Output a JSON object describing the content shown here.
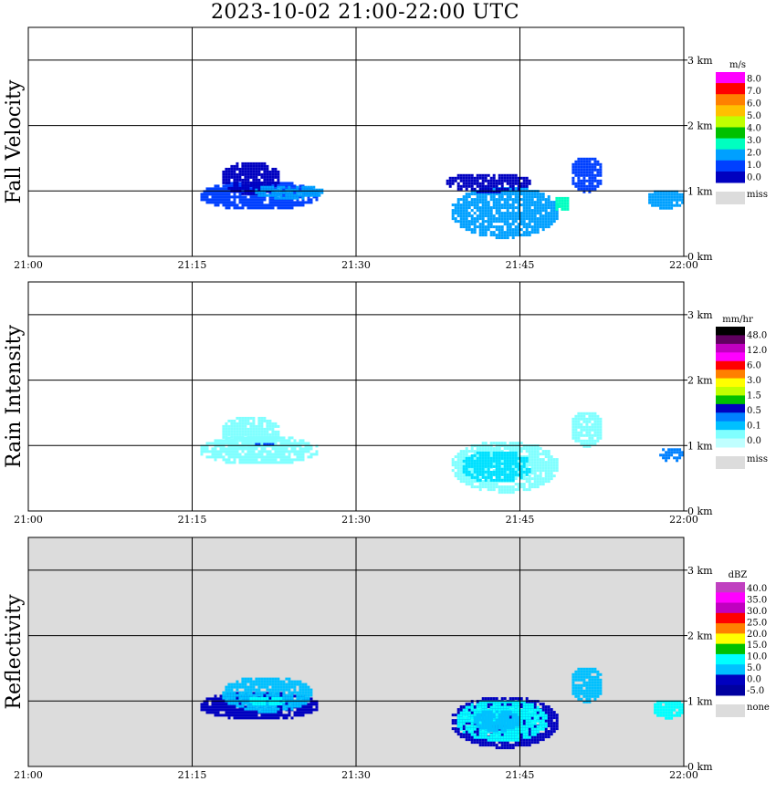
{
  "title": "2023-10-02   21:00-22:00 UTC",
  "x_ticks": [
    "21:00",
    "21:15",
    "21:30",
    "21:45",
    "22:00"
  ],
  "y_ticks": [
    "0 km",
    "1 km",
    "2 km",
    "3 km"
  ],
  "colors": {
    "miss": "#dcdcdc",
    "grid": "#000000"
  },
  "panels": [
    {
      "id": "fall-velocity",
      "ylabel": "Fall Velocity",
      "background": "#ffffff",
      "colorbar": {
        "unit": "m/s",
        "labels": [
          "8.0",
          "7.0",
          "6.0",
          "5.0",
          "4.0",
          "3.0",
          "2.0",
          "1.0",
          "0.0"
        ],
        "colors": [
          "#ff00ff",
          "#ff0000",
          "#ff8000",
          "#ffc000",
          "#c0ff00",
          "#00c000",
          "#00ffc0",
          "#00a0ff",
          "#0040ff",
          "#0000c0"
        ],
        "missing_label": "miss"
      },
      "blobs": [
        {
          "t": [
            15.5,
            26.5
          ],
          "h": [
            0.72,
            1.18
          ],
          "c": "#0040ff"
        },
        {
          "t": [
            17.5,
            23.0
          ],
          "h": [
            0.95,
            1.48
          ],
          "c": "#0000c0"
        },
        {
          "t": [
            20.5,
            27.0
          ],
          "h": [
            0.9,
            1.12
          ],
          "c": "#00a0ff"
        },
        {
          "t": [
            38.5,
            48.5
          ],
          "h": [
            0.3,
            1.1
          ],
          "c": "#00a0ff"
        },
        {
          "t": [
            38.0,
            46.0
          ],
          "h": [
            1.0,
            1.3
          ],
          "c": "#0000c0"
        },
        {
          "t": [
            49.5,
            52.5
          ],
          "h": [
            1.0,
            1.55
          ],
          "c": "#0040ff"
        },
        {
          "t": [
            56.5,
            60.0
          ],
          "h": [
            0.75,
            1.05
          ],
          "c": "#00a0ff"
        },
        {
          "t": [
            48.0,
            49.5
          ],
          "h": [
            0.7,
            0.95
          ],
          "c": "#00ffc0"
        }
      ]
    },
    {
      "id": "rain-intensity",
      "ylabel": "Rain Intensity",
      "background": "#ffffff",
      "colorbar": {
        "unit": "mm/hr",
        "labels": [
          "48.0",
          "12.0",
          "6.0",
          "3.0",
          "1.5",
          "0.5",
          "0.1",
          "0.0"
        ],
        "colors": [
          "#000000",
          "#600060",
          "#c000c0",
          "#ff00ff",
          "#ff0000",
          "#ff8000",
          "#ffff00",
          "#c0ff00",
          "#00c000",
          "#0000c0",
          "#0080ff",
          "#00c0ff",
          "#80ffff",
          "#c0ffff"
        ],
        "missing_label": "miss"
      },
      "blobs": [
        {
          "t": [
            15.5,
            26.5
          ],
          "h": [
            0.72,
            1.18
          ],
          "c": "#80ffff"
        },
        {
          "t": [
            17.5,
            23.0
          ],
          "h": [
            0.95,
            1.48
          ],
          "c": "#80ffff"
        },
        {
          "t": [
            20.5,
            22.5
          ],
          "h": [
            1.0,
            1.08
          ],
          "c": "#0040ff"
        },
        {
          "t": [
            38.5,
            48.5
          ],
          "h": [
            0.3,
            1.1
          ],
          "c": "#80ffff"
        },
        {
          "t": [
            39.5,
            46.0
          ],
          "h": [
            0.45,
            0.95
          ],
          "c": "#00e0ff"
        },
        {
          "t": [
            49.5,
            52.5
          ],
          "h": [
            1.0,
            1.55
          ],
          "c": "#80ffff"
        },
        {
          "t": [
            57.5,
            60.0
          ],
          "h": [
            0.78,
            1.0
          ],
          "c": "#0080ff"
        }
      ]
    },
    {
      "id": "reflectivity",
      "ylabel": "Reflectivity",
      "background": "#dcdcdc",
      "colorbar": {
        "unit": "dBZ",
        "labels": [
          "40.0",
          "35.0",
          "30.0",
          "25.0",
          "20.0",
          "15.0",
          "10.0",
          "5.0",
          "0.0",
          "-5.0"
        ],
        "colors": [
          "#c040c0",
          "#ff00ff",
          "#c000c0",
          "#ff0000",
          "#ff8000",
          "#ffff00",
          "#00c000",
          "#00ffff",
          "#00c0ff",
          "#0000c0",
          "#0000a0"
        ],
        "missing_label": "none"
      },
      "blobs": [
        {
          "t": [
            15.5,
            26.5
          ],
          "h": [
            0.72,
            1.18
          ],
          "c": "#0000c0"
        },
        {
          "t": [
            17.5,
            26.0
          ],
          "h": [
            0.85,
            1.4
          ],
          "c": "#00c0ff"
        },
        {
          "t": [
            20.0,
            23.5
          ],
          "h": [
            0.95,
            1.1
          ],
          "c": "#00ffff"
        },
        {
          "t": [
            38.5,
            48.5
          ],
          "h": [
            0.3,
            1.1
          ],
          "c": "#0000c0"
        },
        {
          "t": [
            39.0,
            47.5
          ],
          "h": [
            0.4,
            1.05
          ],
          "c": "#00ffff"
        },
        {
          "t": [
            40.5,
            45.0
          ],
          "h": [
            0.55,
            0.9
          ],
          "c": "#00c0ff"
        },
        {
          "t": [
            49.5,
            52.5
          ],
          "h": [
            1.0,
            1.55
          ],
          "c": "#00c0ff"
        },
        {
          "t": [
            57.0,
            60.0
          ],
          "h": [
            0.75,
            1.05
          ],
          "c": "#00ffff"
        }
      ]
    }
  ],
  "chart_data": {
    "type": "heatmap",
    "title": "2023-10-02   21:00-22:00 UTC",
    "x_range": [
      "21:00",
      "22:00"
    ],
    "x_tick_labels": [
      "21:00",
      "21:15",
      "21:30",
      "21:45",
      "22:00"
    ],
    "y_range_km": [
      0,
      3.5
    ],
    "y_tick_labels": [
      "0 km",
      "1 km",
      "2 km",
      "3 km"
    ],
    "grid": true,
    "series": [
      {
        "name": "Fall Velocity",
        "unit": "m/s",
        "scale": [
          "8.0",
          "7.0",
          "6.0",
          "5.0",
          "4.0",
          "3.0",
          "2.0",
          "1.0",
          "0.0",
          "miss"
        ]
      },
      {
        "name": "Rain Intensity",
        "unit": "mm/hr",
        "scale": [
          "48.0",
          "12.0",
          "6.0",
          "3.0",
          "1.5",
          "0.5",
          "0.1",
          "0.0",
          "miss"
        ]
      },
      {
        "name": "Reflectivity",
        "unit": "dBZ",
        "scale": [
          "40.0",
          "35.0",
          "30.0",
          "25.0",
          "20.0",
          "15.0",
          "10.0",
          "5.0",
          "0.0",
          "-5.0",
          "none"
        ]
      }
    ]
  }
}
